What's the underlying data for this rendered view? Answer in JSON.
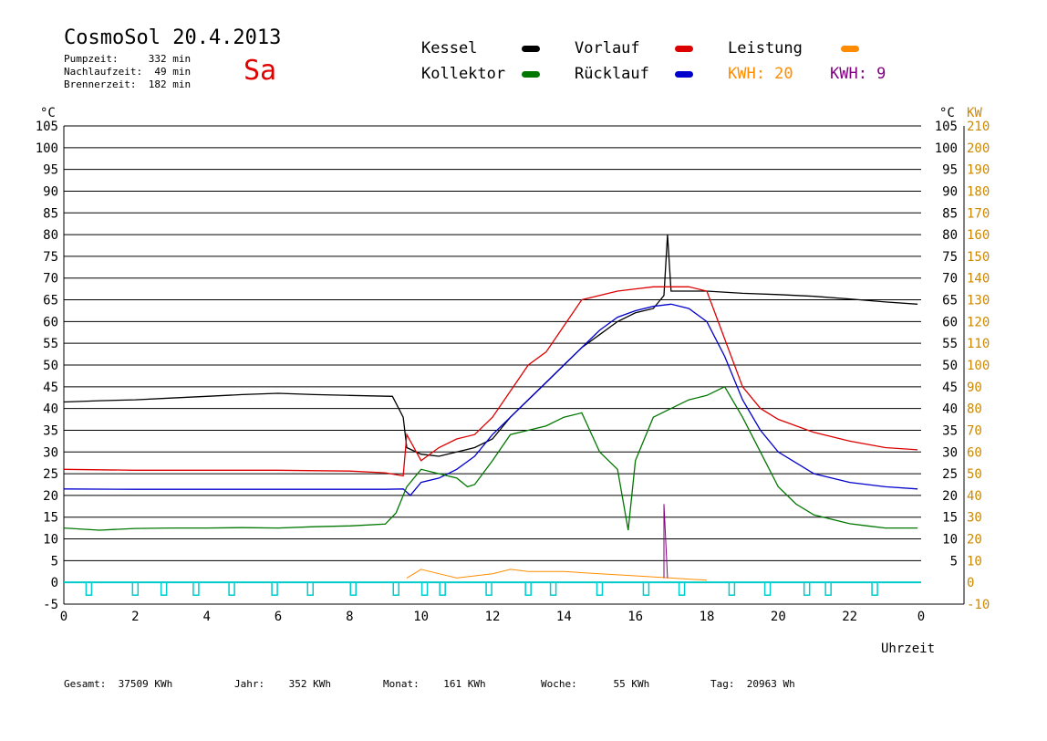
{
  "header": {
    "title": "CosmoSol 20.4.2013",
    "day": "Sa",
    "stats": [
      {
        "text": "Pumpzeit:     332 min"
      },
      {
        "text": "Nachlaufzeit:  49 min"
      },
      {
        "text": "Brennerzeit:  182 min"
      }
    ]
  },
  "legend": {
    "kessel": "Kessel",
    "kollektor": "Kollektor",
    "vorlauf": "Vorlauf",
    "ruecklauf": "Rücklauf",
    "leistung": "Leistung",
    "kwh_orange": "KWH: 20",
    "kwh_purple": "KWH: 9"
  },
  "colors": {
    "kessel": "#000000",
    "kollektor": "#007700",
    "vorlauf": "#dd0000",
    "ruecklauf": "#0000cc",
    "leistung": "#ff8c00",
    "kwh_purple": "#800080",
    "pump": "#00cccc",
    "axis_right_kw": "#cc8800"
  },
  "footer": {
    "gesamt": "Gesamt:  37509 KWh",
    "jahr": "Jahr:    352 KWh",
    "monat": "Monat:    161 KWh",
    "woche": "Woche:      55 KWh",
    "tag": "Tag:  20963 Wh"
  },
  "chart_data": {
    "type": "line",
    "xlabel": "Uhrzeit",
    "y_left_unit": "°C",
    "y_right_unit_c": "°C",
    "y_right_unit_kw": "KW",
    "xlim": [
      0,
      24
    ],
    "ylim": [
      -5,
      105
    ],
    "x_ticks": [
      "0",
      "2",
      "4",
      "6",
      "8",
      "10",
      "12",
      "14",
      "16",
      "18",
      "20",
      "22",
      "0"
    ],
    "y_ticks_left": [
      "105",
      "100",
      "95",
      "90",
      "85",
      "80",
      "75",
      "70",
      "65",
      "60",
      "55",
      "50",
      "45",
      "40",
      "35",
      "30",
      "25",
      "20",
      "15",
      "10",
      "5",
      "0",
      "-5"
    ],
    "y_ticks_right_c": [
      "105",
      "100",
      "95",
      "90",
      "85",
      "80",
      "75",
      "70",
      "65",
      "60",
      "55",
      "50",
      "45",
      "40",
      "35",
      "30",
      "25",
      "20",
      "15",
      "10",
      "5"
    ],
    "y_ticks_right_kw": [
      "210",
      "200",
      "190",
      "180",
      "170",
      "160",
      "150",
      "140",
      "130",
      "120",
      "110",
      "100",
      "90",
      "80",
      "70",
      "60",
      "50",
      "40",
      "30",
      "20",
      "10",
      "0",
      "-10"
    ],
    "grid": true,
    "series": [
      {
        "name": "Kessel",
        "color": "#000000",
        "points": [
          [
            0,
            41.5
          ],
          [
            1,
            41.8
          ],
          [
            2,
            42
          ],
          [
            3,
            42.4
          ],
          [
            4,
            42.8
          ],
          [
            5,
            43.2
          ],
          [
            6,
            43.5
          ],
          [
            7,
            43.2
          ],
          [
            8,
            43
          ],
          [
            9.2,
            42.8
          ],
          [
            9.5,
            38
          ],
          [
            9.6,
            31
          ],
          [
            10,
            29.5
          ],
          [
            10.5,
            29
          ],
          [
            11,
            30
          ],
          [
            11.5,
            31
          ],
          [
            12,
            33
          ],
          [
            12.5,
            38
          ],
          [
            13,
            42
          ],
          [
            13.5,
            46
          ],
          [
            14,
            50
          ],
          [
            14.5,
            54
          ],
          [
            15,
            57
          ],
          [
            15.5,
            60
          ],
          [
            16,
            62
          ],
          [
            16.5,
            63
          ],
          [
            16.8,
            66
          ],
          [
            16.9,
            80
          ],
          [
            17,
            67
          ],
          [
            17.5,
            67
          ],
          [
            18,
            67
          ],
          [
            19,
            66.5
          ],
          [
            20,
            66.2
          ],
          [
            21,
            65.8
          ],
          [
            22,
            65.2
          ],
          [
            23,
            64.5
          ],
          [
            23.9,
            64
          ]
        ]
      },
      {
        "name": "Vorlauf",
        "color": "#dd0000",
        "points": [
          [
            0,
            26
          ],
          [
            2,
            25.8
          ],
          [
            4,
            25.8
          ],
          [
            6,
            25.8
          ],
          [
            8,
            25.6
          ],
          [
            9,
            25.2
          ],
          [
            9.5,
            24.5
          ],
          [
            9.6,
            34
          ],
          [
            10,
            28
          ],
          [
            10.5,
            31
          ],
          [
            11,
            33
          ],
          [
            11.5,
            34
          ],
          [
            12,
            38
          ],
          [
            12.5,
            44
          ],
          [
            13,
            50
          ],
          [
            13.5,
            53
          ],
          [
            14,
            59
          ],
          [
            14.5,
            65
          ],
          [
            15,
            66
          ],
          [
            15.5,
            67
          ],
          [
            16,
            67.5
          ],
          [
            16.5,
            68
          ],
          [
            17,
            68
          ],
          [
            17.5,
            68
          ],
          [
            18,
            67
          ],
          [
            18.5,
            56
          ],
          [
            19,
            45
          ],
          [
            19.5,
            40
          ],
          [
            20,
            37.5
          ],
          [
            21,
            34.5
          ],
          [
            22,
            32.5
          ],
          [
            23,
            31
          ],
          [
            23.9,
            30.5
          ]
        ]
      },
      {
        "name": "Rücklauf",
        "color": "#0000cc",
        "points": [
          [
            0,
            21.5
          ],
          [
            2,
            21.4
          ],
          [
            4,
            21.4
          ],
          [
            6,
            21.4
          ],
          [
            8,
            21.4
          ],
          [
            9,
            21.4
          ],
          [
            9.5,
            21.5
          ],
          [
            9.7,
            20
          ],
          [
            10,
            23
          ],
          [
            10.5,
            24
          ],
          [
            11,
            26
          ],
          [
            11.5,
            29
          ],
          [
            12,
            34
          ],
          [
            12.5,
            38
          ],
          [
            13,
            42
          ],
          [
            13.5,
            46
          ],
          [
            14,
            50
          ],
          [
            14.5,
            54
          ],
          [
            15,
            58
          ],
          [
            15.5,
            61
          ],
          [
            16,
            62.5
          ],
          [
            16.5,
            63.5
          ],
          [
            17,
            64
          ],
          [
            17.5,
            63
          ],
          [
            18,
            60
          ],
          [
            18.5,
            52
          ],
          [
            19,
            42
          ],
          [
            19.5,
            35
          ],
          [
            20,
            30
          ],
          [
            21,
            25
          ],
          [
            22,
            23
          ],
          [
            23,
            22
          ],
          [
            23.9,
            21.5
          ]
        ]
      },
      {
        "name": "Kollektor",
        "color": "#007700",
        "points": [
          [
            0,
            12.5
          ],
          [
            1,
            12
          ],
          [
            2,
            12.4
          ],
          [
            3,
            12.5
          ],
          [
            4,
            12.5
          ],
          [
            5,
            12.6
          ],
          [
            6,
            12.5
          ],
          [
            7,
            12.8
          ],
          [
            8,
            13
          ],
          [
            9,
            13.4
          ],
          [
            9.3,
            16
          ],
          [
            9.6,
            22
          ],
          [
            10,
            26
          ],
          [
            10.5,
            25
          ],
          [
            11,
            24
          ],
          [
            11.3,
            22
          ],
          [
            11.5,
            22.5
          ],
          [
            12,
            28
          ],
          [
            12.5,
            34
          ],
          [
            13,
            35
          ],
          [
            13.5,
            36
          ],
          [
            14,
            38
          ],
          [
            14.5,
            39
          ],
          [
            15,
            30
          ],
          [
            15.5,
            26
          ],
          [
            15.8,
            12
          ],
          [
            16,
            28
          ],
          [
            16.5,
            38
          ],
          [
            17,
            40
          ],
          [
            17.5,
            42
          ],
          [
            18,
            43
          ],
          [
            18.5,
            45
          ],
          [
            19,
            38
          ],
          [
            19.5,
            30
          ],
          [
            20,
            22
          ],
          [
            20.5,
            18
          ],
          [
            21,
            15.5
          ],
          [
            22,
            13.5
          ],
          [
            22.5,
            13
          ],
          [
            23,
            12.5
          ],
          [
            23.9,
            12.5
          ]
        ]
      }
    ]
  }
}
